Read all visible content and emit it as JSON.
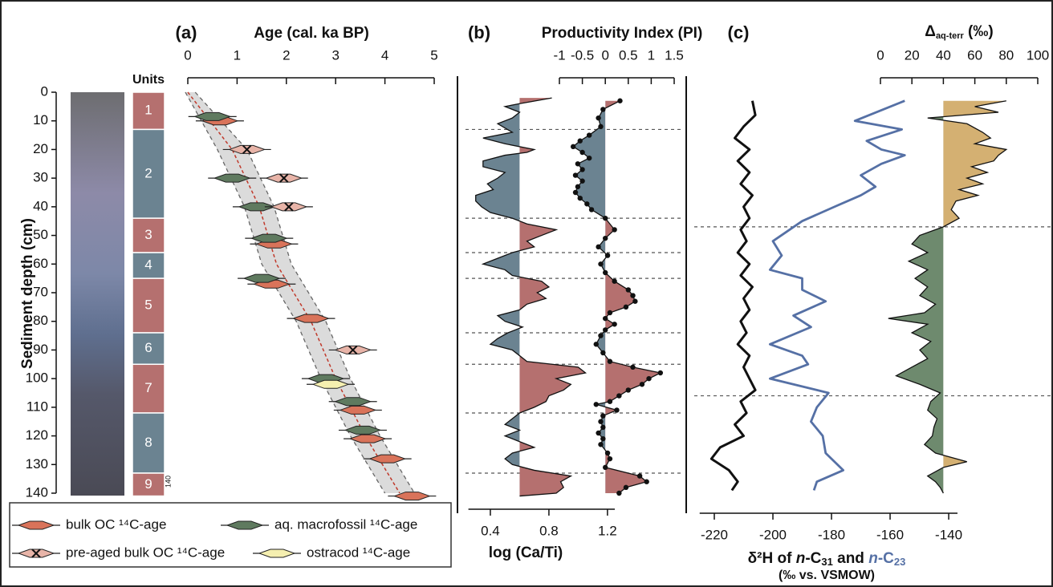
{
  "chart_data": [
    {
      "type": "units",
      "title": "Units",
      "ylabel": "Sediment depth (cm)",
      "ylim": [
        0,
        140
      ],
      "yticks": [
        0,
        10,
        20,
        30,
        40,
        50,
        60,
        70,
        80,
        90,
        100,
        110,
        120,
        130,
        140
      ],
      "labels": [
        "1",
        "2",
        "3",
        "4",
        "5",
        "6",
        "7",
        "8",
        "9"
      ],
      "top": [
        0,
        13,
        44,
        56,
        65,
        84,
        95,
        112,
        133
      ],
      "bottom": [
        13,
        44,
        56,
        65,
        84,
        95,
        112,
        133,
        141
      ],
      "colors": [
        "#b5706f",
        "#6b8391",
        "#b5706f",
        "#6b8391",
        "#b5706f",
        "#6b8391",
        "#b5706f",
        "#6b8391",
        "#b5706f"
      ],
      "annotation": "140"
    },
    {
      "type": "scatter",
      "panel": "(a)",
      "xlabel": "Age (cal. ka BP)",
      "xlim": [
        0,
        5
      ],
      "xticks": [
        0,
        1,
        2,
        3,
        4,
        5
      ],
      "age_model": {
        "y": [
          0,
          20,
          40,
          60,
          80,
          100,
          120,
          140
        ],
        "x": [
          0,
          0.9,
          1.45,
          1.8,
          2.5,
          3.0,
          3.6,
          4.3
        ],
        "lower": [
          -0.05,
          0.6,
          1.15,
          1.5,
          2.2,
          2.7,
          3.3,
          4.0
        ],
        "upper": [
          0.15,
          1.2,
          1.75,
          2.1,
          2.8,
          3.3,
          3.9,
          4.6
        ]
      },
      "series": [
        {
          "name": "bulk OC ¹⁴C-age",
          "color": "#d9735a",
          "x": [
            0.65,
            1.75,
            1.7,
            2.5,
            3.45,
            3.65,
            4.05,
            4.55
          ],
          "y": [
            10,
            53,
            67,
            79,
            111,
            121,
            128,
            141
          ]
        },
        {
          "name": "aq. macrofossil ¹⁴C-age",
          "color": "#5f7a5f",
          "x": [
            0.5,
            0.9,
            1.4,
            1.65,
            1.5,
            2.8,
            3.35,
            3.55
          ],
          "y": [
            8.5,
            30,
            40,
            51,
            65,
            100,
            108,
            118
          ]
        },
        {
          "name": "pre-aged bulk OC ¹⁴C-age",
          "color": "#e8b4a8",
          "marker": "cross",
          "x": [
            1.2,
            1.95,
            2.05,
            3.35
          ],
          "y": [
            20,
            30,
            40,
            90
          ]
        },
        {
          "name": "ostracod ¹⁴C-age",
          "color": "#f5efb0",
          "x": [
            2.9
          ],
          "y": [
            102
          ]
        }
      ]
    },
    {
      "type": "area",
      "panel": "(b)",
      "xlabel": "log (Ca/Ti)",
      "xlim": [
        0.25,
        1.25
      ],
      "xticks": [
        0.4,
        0.8,
        1.2
      ],
      "baseline": 0.6,
      "colors": [
        "#b5706f",
        "#6b8391"
      ],
      "depth": [
        2,
        4,
        5,
        7,
        9,
        11,
        14,
        16,
        18,
        20,
        21,
        22,
        24,
        26,
        28,
        30,
        32,
        34,
        36,
        38,
        40,
        42,
        44,
        46,
        48,
        50,
        52,
        54,
        56,
        58,
        60,
        62,
        64,
        66,
        68,
        70,
        72,
        74,
        76,
        78,
        80,
        82,
        84,
        86,
        88,
        90,
        92,
        94,
        96,
        98,
        100,
        102,
        104,
        106,
        108,
        110,
        112,
        114,
        116,
        118,
        120,
        122,
        124,
        126,
        128,
        130,
        132,
        134,
        136,
        138,
        140,
        141
      ],
      "values": [
        0.82,
        0.6,
        0.5,
        0.6,
        0.55,
        0.45,
        0.55,
        0.35,
        0.5,
        0.7,
        0.65,
        0.5,
        0.35,
        0.35,
        0.5,
        0.45,
        0.38,
        0.42,
        0.3,
        0.3,
        0.34,
        0.4,
        0.55,
        0.65,
        0.85,
        0.75,
        0.65,
        0.7,
        0.55,
        0.45,
        0.35,
        0.5,
        0.55,
        0.75,
        0.8,
        0.72,
        0.78,
        0.65,
        0.6,
        0.45,
        0.5,
        0.62,
        0.52,
        0.45,
        0.4,
        0.55,
        0.6,
        0.65,
        1.0,
        1.05,
        0.85,
        0.95,
        0.9,
        0.8,
        0.78,
        0.7,
        0.6,
        0.55,
        0.5,
        0.6,
        0.5,
        0.6,
        0.7,
        0.55,
        0.5,
        0.55,
        0.7,
        0.95,
        0.88,
        0.9,
        0.85,
        0.6
      ],
      "boundaries": [
        13,
        44,
        56,
        65,
        84,
        95,
        112,
        133
      ]
    },
    {
      "type": "area",
      "xlabel": "Productivity Index (PI)",
      "xlim": [
        -1,
        1.5
      ],
      "xticks": [
        -1,
        -0.5,
        0,
        0.5,
        1,
        1.5
      ],
      "baseline": 0,
      "colors": [
        "#b5706f",
        "#6b8391"
      ],
      "markers": true,
      "depth": [
        3,
        6,
        9,
        12,
        15,
        17,
        19,
        21,
        23,
        25,
        27,
        29,
        31,
        33,
        35,
        37,
        39,
        41,
        44,
        48,
        51,
        54,
        57,
        60,
        63,
        66,
        69,
        71,
        73,
        75,
        77,
        79,
        81,
        83,
        85,
        88,
        91,
        94,
        96,
        98,
        100,
        102,
        104,
        106,
        108,
        109,
        111,
        113,
        115,
        117,
        119,
        121,
        123,
        126,
        128,
        131,
        134,
        136,
        138,
        140
      ],
      "values": [
        0.32,
        -0.05,
        -0.15,
        -0.1,
        -0.35,
        -0.55,
        -0.7,
        -0.5,
        -0.35,
        -0.6,
        -0.5,
        -0.65,
        -0.5,
        -0.6,
        -0.65,
        -0.55,
        -0.4,
        -0.3,
        0,
        0.2,
        0.0,
        -0.15,
        0.05,
        -0.1,
        0.0,
        0.2,
        0.5,
        0.6,
        0.65,
        0.45,
        0.1,
        0.0,
        0.2,
        0.0,
        -0.1,
        -0.2,
        -0.05,
        0.1,
        0.6,
        1.2,
        0.95,
        0.8,
        0.5,
        0.3,
        0.1,
        -0.2,
        0.25,
        -0.05,
        -0.1,
        -0.05,
        -0.15,
        -0.05,
        -0.1,
        0.05,
        0.1,
        0.0,
        0.75,
        0.9,
        0.45,
        0.3
      ]
    },
    {
      "type": "line",
      "panel": "(c)",
      "xlabel_parts": [
        "δ²H of ",
        "n",
        "-C",
        "31",
        " and ",
        "n",
        "-C",
        "23"
      ],
      "xlabel2": "(‰ vs. VSMOW)",
      "xlim": [
        -225,
        -137
      ],
      "xticks": [
        -220,
        -200,
        -180,
        -160,
        -140
      ],
      "series": [
        {
          "color": "#111111",
          "depth": [
            3,
            8,
            12,
            16,
            20,
            24,
            28,
            32,
            36,
            40,
            44,
            48,
            52,
            56,
            60,
            64,
            68,
            72,
            76,
            80,
            84,
            88,
            92,
            96,
            100,
            104,
            108,
            112,
            116,
            120,
            124,
            128,
            132,
            136,
            139
          ],
          "values": [
            -207,
            -206,
            -210,
            -213,
            -208,
            -212,
            -208,
            -211,
            -207,
            -210,
            -208,
            -211,
            -209,
            -212,
            -208,
            -211,
            -207,
            -210,
            -208,
            -211,
            -209,
            -212,
            -208,
            -210,
            -208,
            -206,
            -211,
            -209,
            -213,
            -210,
            -218,
            -221,
            -215,
            -212,
            -214
          ]
        },
        {
          "color": "#5570a5",
          "depth": [
            3,
            10,
            13,
            17,
            20,
            22,
            25,
            29,
            33,
            36,
            40,
            45,
            52,
            57,
            62,
            65,
            69,
            73,
            78,
            82,
            88,
            92,
            95,
            100,
            105,
            110,
            115,
            120,
            126,
            132,
            136,
            139
          ],
          "values": [
            -155,
            -172,
            -156,
            -168,
            -163,
            -155,
            -163,
            -170,
            -165,
            -170,
            -179,
            -190,
            -200,
            -197,
            -201,
            -190,
            -190,
            -182,
            -193,
            -187,
            -201,
            -190,
            -188,
            -201,
            -181,
            -185,
            -187,
            -183,
            -182,
            -176,
            -185,
            -186
          ]
        }
      ],
      "boundaries": [
        47,
        106
      ]
    },
    {
      "type": "area",
      "xlabel_parts": [
        "Δ",
        "aq-terr",
        " (‰)"
      ],
      "xlim": [
        0,
        100
      ],
      "xticks": [
        0,
        20,
        40,
        60,
        80,
        100
      ],
      "baseline": 40,
      "colors": [
        "#d4b072",
        "#6e8a6e"
      ],
      "depth": [
        3,
        5,
        7,
        9,
        11,
        14,
        16,
        18,
        20,
        22,
        24,
        26,
        28,
        30,
        32,
        34,
        36,
        38,
        41,
        44,
        47,
        50,
        53,
        56,
        59,
        62,
        65,
        68,
        71,
        74,
        77,
        79,
        81,
        84,
        87,
        90,
        93,
        96,
        99,
        102,
        105,
        108,
        111,
        114,
        117,
        120,
        123,
        126,
        129,
        131,
        134,
        136,
        138,
        140
      ],
      "values": [
        80,
        60,
        75,
        30,
        55,
        65,
        70,
        60,
        80,
        75,
        72,
        58,
        68,
        55,
        65,
        50,
        62,
        48,
        45,
        50,
        40,
        25,
        20,
        30,
        18,
        30,
        22,
        30,
        25,
        35,
        28,
        5,
        30,
        20,
        32,
        25,
        30,
        20,
        10,
        25,
        38,
        32,
        30,
        36,
        34,
        33,
        28,
        35,
        55,
        40,
        30,
        35,
        38,
        40
      ]
    }
  ]
}
